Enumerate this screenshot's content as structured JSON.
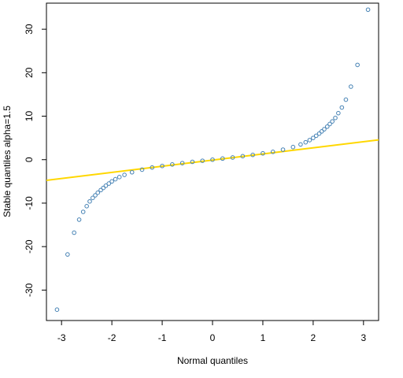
{
  "chart_data": {
    "type": "scatter",
    "title": "",
    "xlabel": "Normal quantiles",
    "ylabel": "Stable quantiles alpha=1.5",
    "xlim": [
      -3.3,
      3.3
    ],
    "ylim": [
      -37,
      36
    ],
    "xticks": [
      -3,
      -2,
      -1,
      0,
      1,
      2,
      3
    ],
    "yticks": [
      -30,
      -20,
      -10,
      0,
      10,
      20,
      30
    ],
    "grid": false,
    "legend": "none",
    "series": [
      {
        "kind": "points",
        "marker": "open-circle",
        "color": "#4682b4",
        "points": [
          [
            -3.09,
            -34.5
          ],
          [
            -2.88,
            -21.8
          ],
          [
            -2.75,
            -16.8
          ],
          [
            -2.65,
            -13.8
          ],
          [
            -2.57,
            -12.0
          ],
          [
            -2.5,
            -10.7
          ],
          [
            -2.44,
            -9.6
          ],
          [
            -2.38,
            -8.8
          ],
          [
            -2.33,
            -8.2
          ],
          [
            -2.28,
            -7.6
          ],
          [
            -2.22,
            -7.0
          ],
          [
            -2.17,
            -6.5
          ],
          [
            -2.12,
            -6.0
          ],
          [
            -2.06,
            -5.5
          ],
          [
            -2.0,
            -5.0
          ],
          [
            -1.93,
            -4.5
          ],
          [
            -1.85,
            -4.0
          ],
          [
            -1.75,
            -3.5
          ],
          [
            -1.6,
            -2.9
          ],
          [
            -1.4,
            -2.3
          ],
          [
            -1.2,
            -1.8
          ],
          [
            -1.0,
            -1.45
          ],
          [
            -0.8,
            -1.1
          ],
          [
            -0.6,
            -0.8
          ],
          [
            -0.4,
            -0.5
          ],
          [
            -0.2,
            -0.25
          ],
          [
            0.0,
            0.0
          ],
          [
            0.2,
            0.25
          ],
          [
            0.4,
            0.5
          ],
          [
            0.6,
            0.8
          ],
          [
            0.8,
            1.1
          ],
          [
            1.0,
            1.45
          ],
          [
            1.2,
            1.8
          ],
          [
            1.4,
            2.3
          ],
          [
            1.6,
            2.9
          ],
          [
            1.75,
            3.5
          ],
          [
            1.85,
            4.0
          ],
          [
            1.93,
            4.5
          ],
          [
            2.0,
            5.0
          ],
          [
            2.06,
            5.5
          ],
          [
            2.12,
            6.0
          ],
          [
            2.17,
            6.5
          ],
          [
            2.22,
            7.0
          ],
          [
            2.28,
            7.6
          ],
          [
            2.33,
            8.2
          ],
          [
            2.38,
            8.8
          ],
          [
            2.44,
            9.6
          ],
          [
            2.5,
            10.7
          ],
          [
            2.57,
            12.0
          ],
          [
            2.65,
            13.8
          ],
          [
            2.75,
            16.8
          ],
          [
            2.88,
            21.8
          ],
          [
            3.09,
            34.5
          ]
        ]
      },
      {
        "kind": "line",
        "color": "#ffd700",
        "points": [
          [
            -3.4,
            -4.9
          ],
          [
            3.4,
            4.7
          ]
        ]
      }
    ]
  }
}
